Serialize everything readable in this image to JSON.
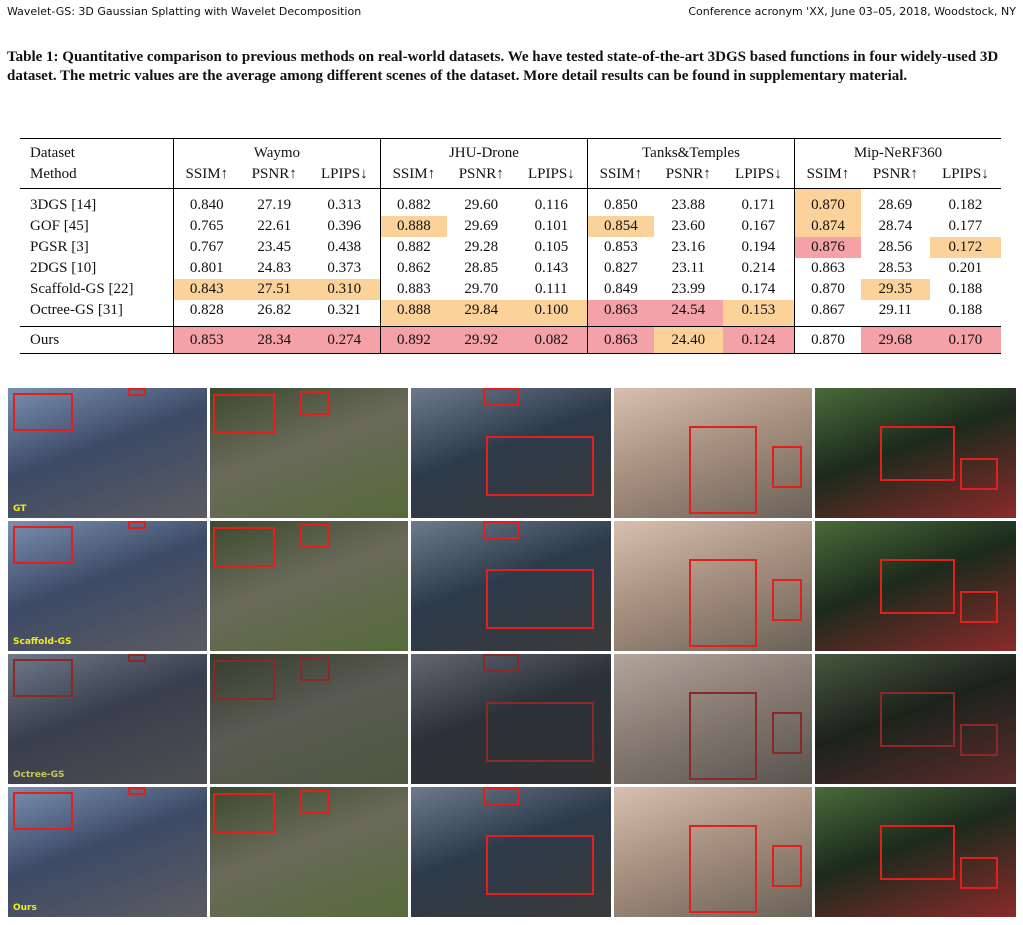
{
  "header": {
    "left": "Wavelet-GS: 3D Gaussian Splatting with Wavelet Decomposition",
    "right": "Conference acronym 'XX, June 03–05, 2018, Woodstock, NY"
  },
  "table": {
    "caption": "Table 1: Quantitative comparison to previous methods on real-world datasets. We have tested state-of-the-art 3DGS based functions in four widely-used 3D dataset. The metric values are the average among different scenes of the dataset. More detail results can be found in supplementary material.",
    "corner": [
      "Dataset",
      "Method"
    ],
    "groups": [
      "Waymo",
      "JHU-Drone",
      "Tanks&Temples",
      "Mip-NeRF360"
    ],
    "metrics": [
      "SSIM↑",
      "PSNR↑",
      "LPIPS↓",
      "SSIM↑",
      "PSNR↑",
      "LPIPS↓",
      "SSIM↑",
      "PSNR↑",
      "LPIPS↓",
      "SSIM↑",
      "PSNR↑",
      "LPIPS↓"
    ],
    "rows": [
      [
        "3DGS [14]",
        "0.840",
        "27.19",
        "0.313",
        "0.882",
        "29.60",
        "0.116",
        "0.850",
        "23.88",
        "0.171",
        "0.870",
        "28.69",
        "0.182"
      ],
      [
        "GOF [45]",
        "0.765",
        "22.61",
        "0.396",
        "0.888",
        "29.69",
        "0.101",
        "0.854",
        "23.60",
        "0.167",
        "0.874",
        "28.74",
        "0.177"
      ],
      [
        "PGSR [3]",
        "0.767",
        "23.45",
        "0.438",
        "0.882",
        "29.28",
        "0.105",
        "0.853",
        "23.16",
        "0.194",
        "0.876",
        "28.56",
        "0.172"
      ],
      [
        "2DGS [10]",
        "0.801",
        "24.83",
        "0.373",
        "0.862",
        "28.85",
        "0.143",
        "0.827",
        "23.11",
        "0.214",
        "0.863",
        "28.53",
        "0.201"
      ],
      [
        "Scaffold-GS [22]",
        "0.843",
        "27.51",
        "0.310",
        "0.883",
        "29.70",
        "0.111",
        "0.849",
        "23.99",
        "0.174",
        "0.870",
        "29.35",
        "0.188"
      ],
      [
        "Octree-GS [31]",
        "0.828",
        "26.82",
        "0.321",
        "0.888",
        "29.84",
        "0.100",
        "0.863",
        "24.54",
        "0.153",
        "0.867",
        "29.11",
        "0.188"
      ]
    ],
    "final_row": [
      "Ours",
      "0.853",
      "28.34",
      "0.274",
      "0.892",
      "29.92",
      "0.082",
      "0.863",
      "24.40",
      "0.124",
      "0.870",
      "29.68",
      "0.170"
    ]
  },
  "figure": {
    "row_labels": [
      "GT",
      "Scaffold-GS",
      "Octree-GS",
      "Ours"
    ]
  }
}
